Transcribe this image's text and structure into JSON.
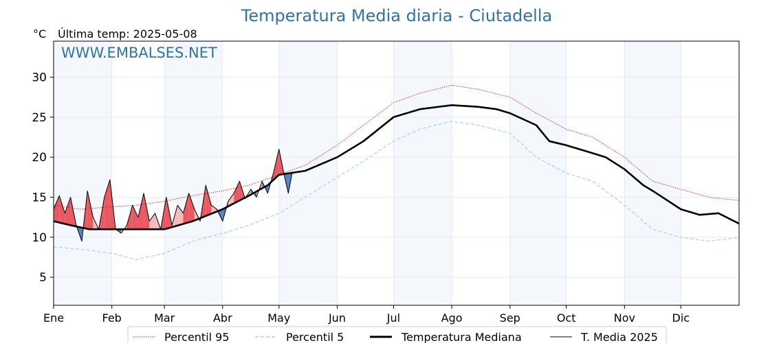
{
  "chart_data": {
    "type": "line",
    "title": "Temperatura Media diaria - Ciutadella",
    "unit_label": "°C",
    "last_temp_label": "Última temp: 2025-05-08",
    "watermark": "WWW.EMBALSES.NET",
    "ylim": [
      1.5,
      34.5
    ],
    "yticks": [
      5,
      10,
      15,
      20,
      25,
      30
    ],
    "months": [
      "Ene",
      "Feb",
      "Mar",
      "Abr",
      "May",
      "Jun",
      "Jul",
      "Ago",
      "Sep",
      "Oct",
      "Nov",
      "Dic"
    ],
    "month_start_days": [
      1,
      32,
      60,
      91,
      121,
      152,
      182,
      213,
      244,
      274,
      305,
      335
    ],
    "days_in_year": 366,
    "grid": true,
    "legend_position": "bottom-center",
    "colors": {
      "p95": "#e31a1c",
      "p5": "#a6d8e6",
      "median": "#000000",
      "current": "#000000",
      "above_fill": "#f4b6b6",
      "above_strong": "#e8505a",
      "below_fill": "#4a7eb8",
      "shade": "#f4f8fc",
      "title": "#2e73a8"
    },
    "series": [
      {
        "name": "Percentil 95",
        "style": "dotted-red",
        "x": [
          1,
          15,
          32,
          45,
          60,
          75,
          91,
          105,
          121,
          135,
          152,
          166,
          182,
          196,
          213,
          227,
          244,
          258,
          274,
          288,
          305,
          320,
          335,
          350,
          366
        ],
        "values": [
          14.0,
          13.5,
          13.8,
          14.0,
          14.5,
          15.2,
          15.8,
          16.5,
          17.8,
          19.0,
          21.5,
          24.0,
          26.8,
          28.0,
          29.0,
          28.5,
          27.5,
          25.5,
          23.5,
          22.5,
          20.0,
          17.0,
          16.0,
          15.0,
          14.6
        ]
      },
      {
        "name": "Percentil 5",
        "style": "dashed-lightblue",
        "x": [
          1,
          15,
          32,
          45,
          60,
          75,
          91,
          105,
          121,
          135,
          152,
          166,
          182,
          196,
          213,
          227,
          244,
          258,
          274,
          288,
          305,
          320,
          335,
          350,
          366
        ],
        "values": [
          8.8,
          8.5,
          8.0,
          7.2,
          8.0,
          9.5,
          10.5,
          11.5,
          13.0,
          15.0,
          17.5,
          19.5,
          22.0,
          23.5,
          24.5,
          24.0,
          23.0,
          20.0,
          18.0,
          17.0,
          14.0,
          11.0,
          10.0,
          9.5,
          10.0
        ]
      },
      {
        "name": "Temperatura Mediana",
        "style": "thick-black",
        "x": [
          1,
          10,
          20,
          32,
          45,
          60,
          75,
          91,
          105,
          115,
          121,
          135,
          152,
          166,
          182,
          196,
          213,
          227,
          237,
          244,
          258,
          265,
          274,
          288,
          295,
          305,
          315,
          320,
          335,
          345,
          355,
          366
        ],
        "values": [
          12.0,
          11.5,
          11.0,
          11.0,
          11.0,
          11.0,
          12.0,
          13.5,
          15.2,
          16.5,
          17.8,
          18.3,
          20.0,
          22.0,
          25.0,
          26.0,
          26.5,
          26.3,
          26.0,
          25.5,
          24.0,
          22.0,
          21.5,
          20.5,
          20.0,
          18.5,
          16.5,
          15.8,
          13.5,
          12.8,
          13.0,
          11.7
        ]
      },
      {
        "name": "T. Media 2025",
        "style": "thin-black",
        "x": [
          1,
          4,
          7,
          10,
          13,
          16,
          19,
          22,
          25,
          28,
          31,
          34,
          37,
          40,
          43,
          46,
          49,
          52,
          55,
          58,
          61,
          64,
          67,
          70,
          73,
          76,
          79,
          82,
          85,
          88,
          91,
          94,
          97,
          100,
          103,
          106,
          109,
          112,
          115,
          118,
          121,
          124,
          126,
          128
        ],
        "values": [
          13.5,
          15.2,
          13.0,
          15.0,
          11.5,
          9.5,
          15.8,
          12.5,
          11.0,
          15.0,
          17.2,
          11.0,
          10.5,
          11.5,
          14.0,
          12.5,
          15.5,
          12.0,
          13.0,
          11.0,
          15.0,
          11.5,
          14.0,
          13.0,
          15.5,
          13.5,
          12.0,
          16.5,
          14.0,
          13.5,
          12.0,
          14.5,
          15.5,
          17.0,
          14.8,
          16.0,
          15.0,
          17.0,
          15.5,
          18.0,
          21.0,
          17.5,
          15.5,
          18.0
        ]
      }
    ],
    "legend": [
      "Percentil 95",
      "Percentil 5",
      "Temperatura Mediana",
      "T. Media 2025"
    ]
  }
}
